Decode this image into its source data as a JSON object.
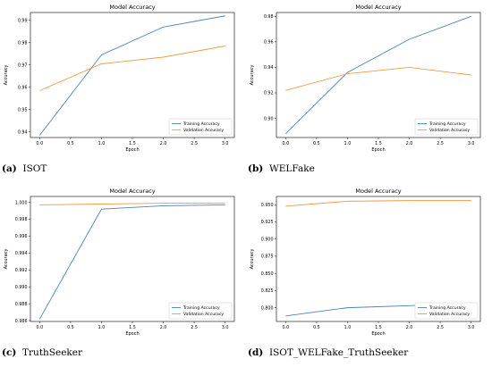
{
  "panels": [
    {
      "caption_letter": "(a)",
      "caption_text": "ISOT",
      "chart_data": {
        "type": "line",
        "title": "Model Accuracy",
        "xlabel": "Epoch",
        "ylabel": "Accuracy",
        "xlim": [
          -0.15,
          3.15
        ],
        "ylim": [
          0.9375,
          0.9935
        ],
        "xticks": [
          0.0,
          0.5,
          1.0,
          1.5,
          2.0,
          2.5,
          3.0
        ],
        "xtick_labels": [
          "0.0",
          "0.5",
          "1.0",
          "1.5",
          "2.0",
          "2.5",
          "3.0"
        ],
        "yticks": [
          0.94,
          0.95,
          0.96,
          0.97,
          0.98,
          0.99
        ],
        "ytick_labels": [
          "0.94",
          "0.95",
          "0.96",
          "0.97",
          "0.98",
          "0.99"
        ],
        "legend": "lower-right",
        "grid": false,
        "x": [
          0,
          1,
          2,
          3
        ],
        "series": [
          {
            "name": "Training Accuracy",
            "color": "#4c82b5",
            "values": [
              0.9385,
              0.9745,
              0.987,
              0.992
            ]
          },
          {
            "name": "Validation Accuracy",
            "color": "#ef9b42",
            "values": [
              0.9585,
              0.9705,
              0.9735,
              0.9785
            ]
          }
        ]
      }
    },
    {
      "caption_letter": "(b)",
      "caption_text": "WELFake",
      "chart_data": {
        "type": "line",
        "title": "Model Accuracy",
        "xlabel": "Epoch",
        "ylabel": "Accuracy",
        "xlim": [
          -0.15,
          3.15
        ],
        "ylim": [
          0.885,
          0.983
        ],
        "xticks": [
          0.0,
          0.5,
          1.0,
          1.5,
          2.0,
          2.5,
          3.0
        ],
        "xtick_labels": [
          "0.0",
          "0.5",
          "1.0",
          "1.5",
          "2.0",
          "2.5",
          "3.0"
        ],
        "yticks": [
          0.9,
          0.92,
          0.94,
          0.96,
          0.98
        ],
        "ytick_labels": [
          "0.90",
          "0.92",
          "0.94",
          "0.96",
          "0.98"
        ],
        "legend": "lower-right",
        "grid": false,
        "x": [
          0,
          1,
          2,
          3
        ],
        "series": [
          {
            "name": "Training Accuracy",
            "color": "#4c82b5",
            "values": [
              0.888,
              0.936,
              0.962,
              0.98
            ]
          },
          {
            "name": "Validation Accuracy",
            "color": "#ef9b42",
            "values": [
              0.922,
              0.935,
              0.94,
              0.934
            ]
          }
        ]
      }
    },
    {
      "caption_letter": "(c)",
      "caption_text": "TruthSeeker",
      "chart_data": {
        "type": "line",
        "title": "Model Accuracy",
        "xlabel": "Epoch",
        "ylabel": "Accuracy",
        "xlim": [
          -0.15,
          3.15
        ],
        "ylim": [
          0.9859,
          1.0007
        ],
        "xticks": [
          0.0,
          0.5,
          1.0,
          1.5,
          2.0,
          2.5,
          3.0
        ],
        "xtick_labels": [
          "0.0",
          "0.5",
          "1.0",
          "1.5",
          "2.0",
          "2.5",
          "3.0"
        ],
        "yticks": [
          0.986,
          0.988,
          0.99,
          0.992,
          0.994,
          0.996,
          0.998,
          1.0
        ],
        "ytick_labels": [
          "0.986",
          "0.988",
          "0.990",
          "0.992",
          "0.994",
          "0.996",
          "0.998",
          "1.000"
        ],
        "legend": "lower-right",
        "grid": false,
        "x": [
          0,
          1,
          2,
          3
        ],
        "series": [
          {
            "name": "Training Accuracy",
            "color": "#4c82b5",
            "values": [
              0.9862,
              0.9992,
              0.9996,
              0.9997
            ]
          },
          {
            "name": "Validation Accuracy",
            "color": "#ef9b42",
            "values": [
              0.9997,
              0.9998,
              0.9999,
              0.9999
            ]
          }
        ]
      }
    },
    {
      "caption_letter": "(d)",
      "caption_text": "ISOT_WELFake_TruthSeeker",
      "chart_data": {
        "type": "line",
        "title": "Model Accuracy",
        "xlabel": "Epoch",
        "ylabel": "Accuracy",
        "xlim": [
          -0.15,
          3.15
        ],
        "ylim": [
          0.78,
          0.962
        ],
        "xticks": [
          0.0,
          0.5,
          1.0,
          1.5,
          2.0,
          2.5,
          3.0
        ],
        "xtick_labels": [
          "0.0",
          "0.5",
          "1.0",
          "1.5",
          "2.0",
          "2.5",
          "3.0"
        ],
        "yticks": [
          0.8,
          0.825,
          0.85,
          0.875,
          0.9,
          0.925,
          0.95
        ],
        "ytick_labels": [
          "0.800",
          "0.825",
          "0.850",
          "0.875",
          "0.900",
          "0.925",
          "0.950"
        ],
        "legend": "lower-right",
        "grid": false,
        "x": [
          0,
          1,
          2,
          3
        ],
        "series": [
          {
            "name": "Training Accuracy",
            "color": "#4c82b5",
            "values": [
              0.788,
              0.8,
              0.803,
              0.806
            ]
          },
          {
            "name": "Validation Accuracy",
            "color": "#ef9b42",
            "values": [
              0.948,
              0.955,
              0.956,
              0.956
            ]
          }
        ]
      }
    }
  ]
}
